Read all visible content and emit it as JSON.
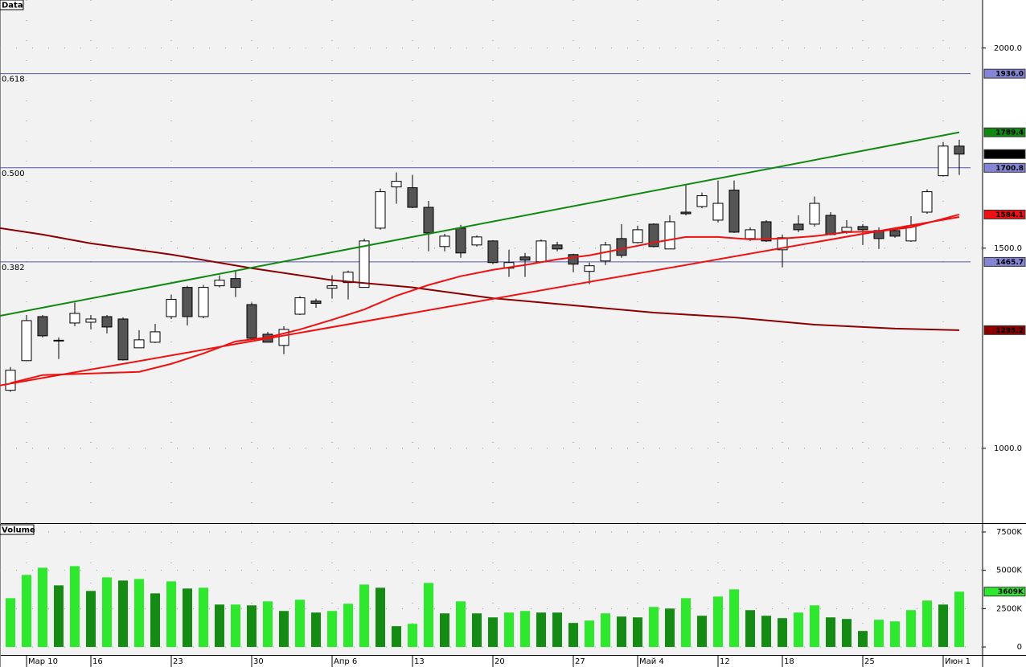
{
  "chart_data": [
    {
      "type": "candlestick",
      "title": "Data",
      "categories": [
        null,
        "Мар 10",
        null,
        null,
        null,
        "16",
        null,
        null,
        null,
        null,
        "23",
        null,
        null,
        null,
        null,
        "30",
        null,
        null,
        null,
        null,
        "Апр 6",
        null,
        null,
        null,
        null,
        "13",
        null,
        null,
        null,
        null,
        "20",
        null,
        null,
        null,
        null,
        "27",
        null,
        null,
        null,
        "Май 4",
        null,
        null,
        null,
        null,
        "12",
        null,
        null,
        null,
        "18",
        null,
        null,
        null,
        null,
        "25",
        null,
        null,
        null,
        null,
        "Июн 1",
        null
      ],
      "open": [
        1145,
        1219,
        1329,
        1270,
        1313,
        1315,
        1329,
        1323,
        1251,
        1265,
        1329,
        1402,
        1329,
        1406,
        1424,
        1359,
        1285,
        1257,
        1335,
        1368,
        1400,
        1414,
        1402,
        1550,
        1653,
        1651,
        1602,
        1504,
        1550,
        1508,
        1518,
        1450,
        1478,
        1466,
        1508,
        1484,
        1442,
        1468,
        1524,
        1514,
        1560,
        1498,
        1590,
        1604,
        1570,
        1645,
        1524,
        1566,
        1496,
        1560,
        1560,
        1582,
        1542,
        1554,
        1544,
        1544,
        1518,
        1590,
        1681,
        1755
      ],
      "high": [
        1203,
        1333,
        1333,
        1277,
        1364,
        1333,
        1333,
        1327,
        1295,
        1311,
        1384,
        1406,
        1408,
        1432,
        1444,
        1364,
        1291,
        1305,
        1380,
        1374,
        1432,
        1444,
        1524,
        1649,
        1689,
        1683,
        1618,
        1536,
        1558,
        1532,
        1520,
        1496,
        1488,
        1522,
        1516,
        1486,
        1464,
        1516,
        1560,
        1556,
        1562,
        1582,
        1657,
        1639,
        1669,
        1669,
        1552,
        1570,
        1534,
        1582,
        1629,
        1590,
        1570,
        1560,
        1552,
        1552,
        1580,
        1647,
        1765,
        1771
      ],
      "low": [
        1141,
        1219,
        1277,
        1223,
        1305,
        1297,
        1287,
        1219,
        1251,
        1263,
        1323,
        1307,
        1325,
        1402,
        1378,
        1275,
        1265,
        1235,
        1333,
        1351,
        1374,
        1372,
        1402,
        1546,
        1611,
        1600,
        1492,
        1492,
        1476,
        1504,
        1460,
        1428,
        1428,
        1464,
        1492,
        1440,
        1410,
        1458,
        1476,
        1512,
        1502,
        1498,
        1582,
        1600,
        1564,
        1538,
        1518,
        1516,
        1452,
        1540,
        1554,
        1532,
        1536,
        1508,
        1498,
        1526,
        1516,
        1586,
        1679,
        1683
      ],
      "close": [
        1195,
        1319,
        1281,
        1268,
        1337,
        1323,
        1303,
        1221,
        1271,
        1291,
        1372,
        1329,
        1402,
        1420,
        1402,
        1275,
        1265,
        1297,
        1376,
        1362,
        1406,
        1440,
        1518,
        1641,
        1667,
        1602,
        1538,
        1530,
        1488,
        1528,
        1464,
        1464,
        1470,
        1518,
        1498,
        1460,
        1456,
        1508,
        1482,
        1546,
        1504,
        1566,
        1586,
        1631,
        1612,
        1540,
        1546,
        1518,
        1526,
        1546,
        1612,
        1534,
        1552,
        1546,
        1524,
        1530,
        1556,
        1641,
        1755,
        1735
      ],
      "up_color": "#ffffff",
      "down_color": "#555555",
      "last_tag": "1735.0",
      "last_tag_color": "#000000",
      "lines": [
        {
          "color": "#8b0000",
          "x": [
            -0.65,
            2,
            5,
            10,
            15,
            20,
            25,
            30,
            35,
            40,
            45,
            50,
            55,
            59
          ],
          "values": [
            1550,
            1534,
            1512,
            1484,
            1450,
            1420,
            1402,
            1375,
            1357,
            1339,
            1327,
            1309,
            1299,
            1295.2
          ],
          "tag": "1295.2"
        },
        {
          "color": "#ee1111",
          "x": [
            0,
            2,
            5,
            8,
            10,
            12,
            14,
            16,
            18,
            20,
            22,
            24,
            26,
            28,
            30,
            32,
            34,
            36,
            38,
            40,
            42,
            44,
            46,
            48,
            50,
            52,
            54,
            56,
            59
          ],
          "values": [
            1163,
            1183,
            1187,
            1191,
            1211,
            1237,
            1267,
            1277,
            1297,
            1321,
            1347,
            1381,
            1408,
            1430,
            1446,
            1458,
            1472,
            1482,
            1498,
            1514,
            1528,
            1528,
            1522,
            1524,
            1530,
            1540,
            1542,
            1552,
            1584.1
          ],
          "tag": "1584.1"
        },
        {
          "color": "#ee1111",
          "x": [
            -0.65,
            59
          ],
          "values": [
            1157,
            1578
          ]
        },
        {
          "color": "#118811",
          "x": [
            -0.65,
            59
          ],
          "values": [
            1331,
            1789.4
          ],
          "tag": "1789.4"
        }
      ],
      "levels": [
        {
          "ratio": "0.618",
          "value": 1936,
          "tag": "1936.0"
        },
        {
          "ratio": "0.500",
          "value": 1700.8,
          "tag": "1700.8"
        },
        {
          "ratio": "0.382",
          "value": 1465.7,
          "tag": "1465.7"
        }
      ],
      "level_color": "#5555aa",
      "level_tag_color": "#8585d6",
      "ylim": [
        815,
        2120
      ],
      "yticks": [
        {
          "value": 1000,
          "label": "1000.0"
        },
        {
          "value": 1500,
          "label": "1500.0"
        },
        {
          "value": 2000,
          "label": "2000.0"
        }
      ],
      "grid": true
    },
    {
      "type": "bar",
      "title": "Volume",
      "values": [
        3184,
        4698,
        5168,
        4019,
        5272,
        3654,
        4541,
        4333,
        4437,
        3497,
        4280,
        3811,
        3863,
        2767,
        2767,
        2714,
        2975,
        2349,
        3080,
        2245,
        2349,
        2819,
        4072,
        3863,
        1357,
        1514,
        4176,
        2192,
        2975,
        2192,
        1931,
        2245,
        2349,
        2245,
        2245,
        1566,
        1723,
        2192,
        1984,
        1931,
        2610,
        2506,
        3184,
        2036,
        3289,
        3758,
        2401,
        2036,
        1879,
        2245,
        2714,
        1931,
        1827,
        1044,
        1775,
        1670,
        2401,
        3028,
        2767,
        3609
      ],
      "colors": [
        "#2ee82e",
        "#2ee82e",
        "#2ee82e",
        "#148c14",
        "#2ee82e",
        "#148c14",
        "#2ee82e",
        "#148c14",
        "#2ee82e",
        "#148c14",
        "#2ee82e",
        "#148c14",
        "#2ee82e",
        "#148c14",
        "#2ee82e",
        "#148c14",
        "#2ee82e",
        "#148c14",
        "#2ee82e",
        "#148c14",
        "#2ee82e",
        "#2ee82e",
        "#2ee82e",
        "#148c14",
        "#148c14",
        "#2ee82e",
        "#2ee82e",
        "#148c14",
        "#2ee82e",
        "#148c14",
        "#148c14",
        "#2ee82e",
        "#2ee82e",
        "#148c14",
        "#148c14",
        "#148c14",
        "#2ee82e",
        "#2ee82e",
        "#148c14",
        "#148c14",
        "#2ee82e",
        "#148c14",
        "#2ee82e",
        "#148c14",
        "#2ee82e",
        "#2ee82e",
        "#148c14",
        "#148c14",
        "#148c14",
        "#2ee82e",
        "#2ee82e",
        "#148c14",
        "#148c14",
        "#148c14",
        "#2ee82e",
        "#2ee82e",
        "#2ee82e",
        "#2ee82e",
        "#148c14",
        "#2ee82e"
      ],
      "last_tag": "3609K",
      "last_tag_color": "#2ee82e",
      "ylim": [
        -520,
        7970
      ],
      "yticks": [
        0,
        {
          "value": 2500,
          "label": "2500K"
        },
        {
          "value": 5000,
          "label": "5000K"
        },
        {
          "value": 7500,
          "label": "7500K"
        }
      ],
      "grid": true
    }
  ]
}
